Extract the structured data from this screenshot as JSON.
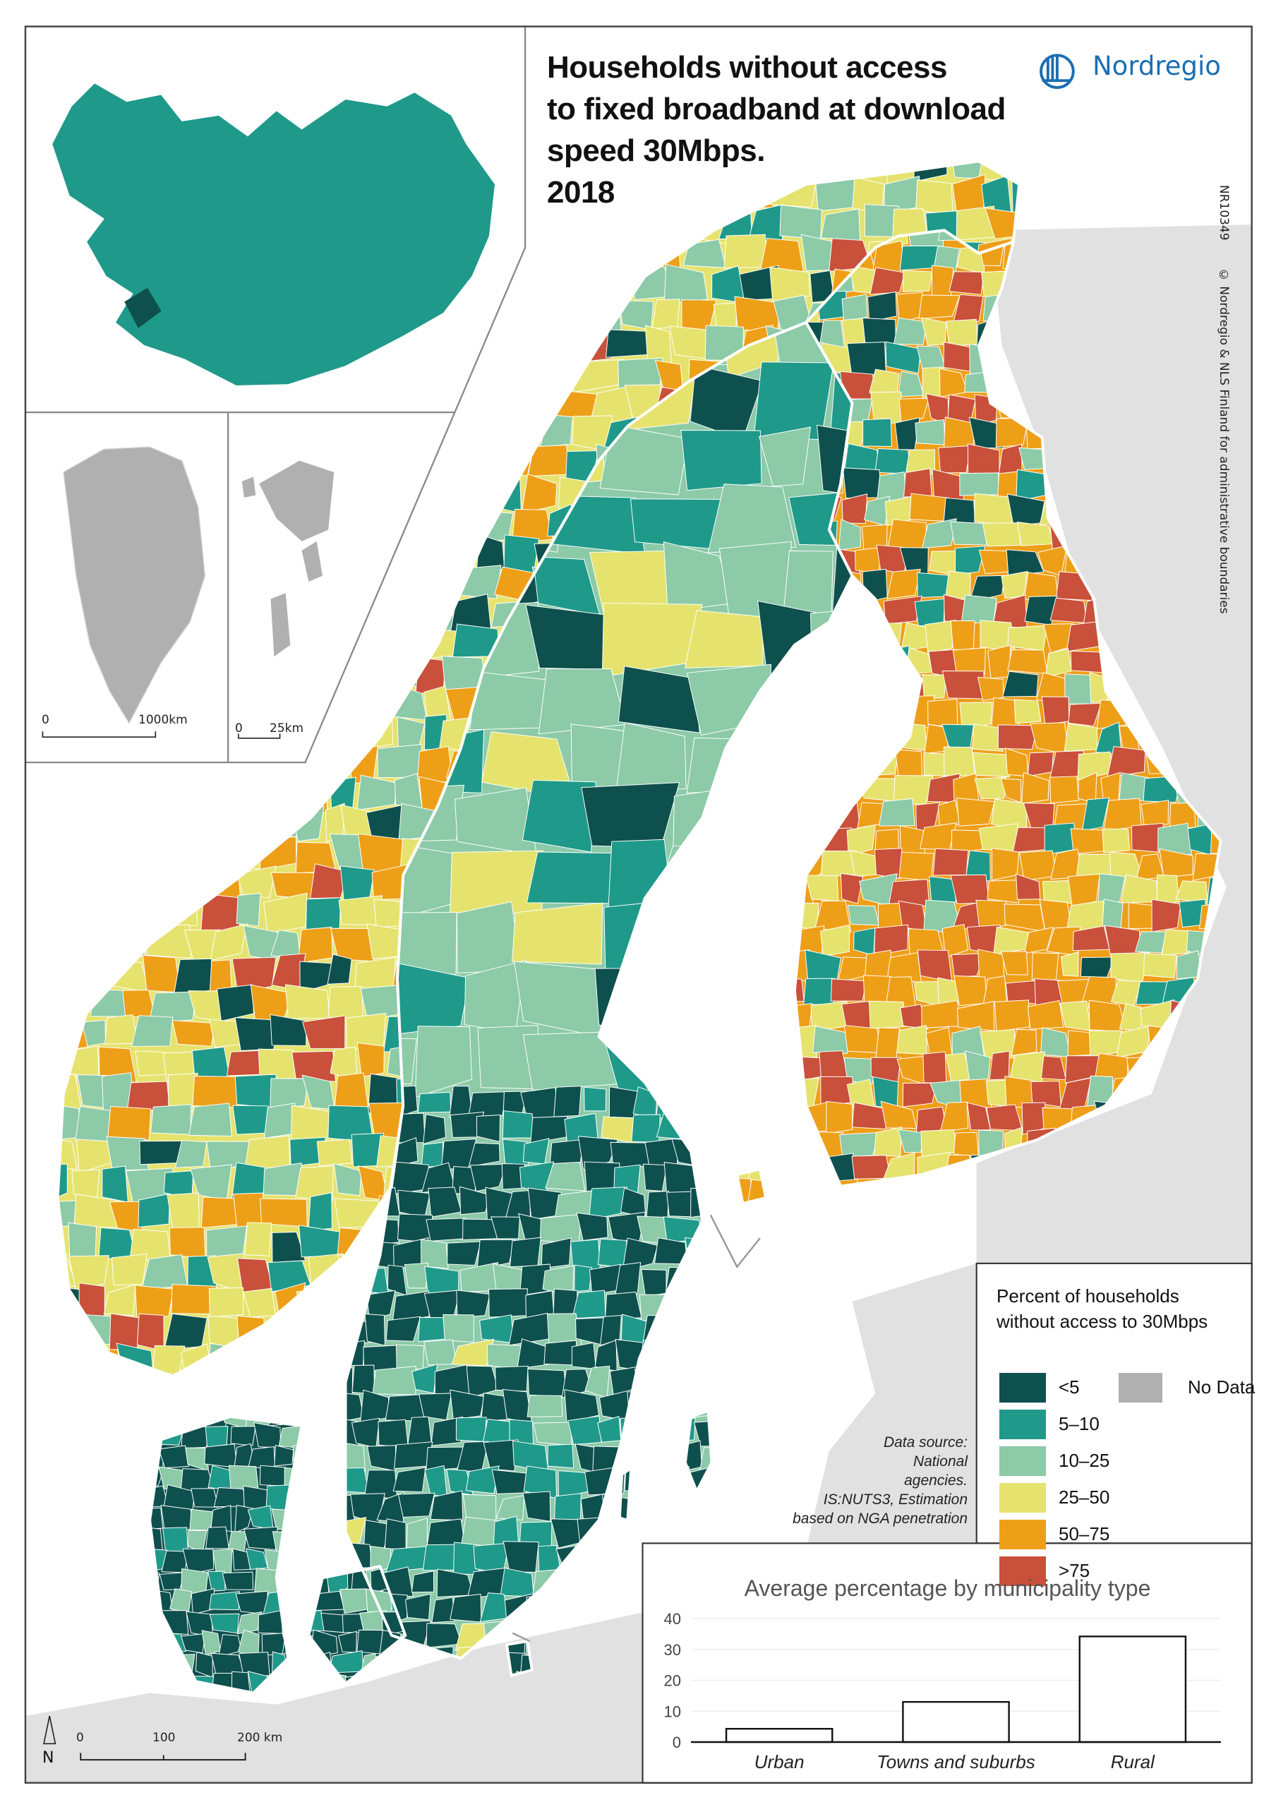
{
  "title": {
    "lines": [
      "Households without access",
      "to fixed broadband at download",
      "speed 30Mbps.",
      "2018"
    ]
  },
  "brand": {
    "name": "Nordregio",
    "color": "#1b6eb4"
  },
  "credits": {
    "map_id": "NR10349",
    "copyright": "© Nordregio & NLS Finland for administrative boundaries"
  },
  "legend": {
    "title_lines": [
      "Percent of households",
      "without access to 30Mbps"
    ],
    "classes": [
      {
        "label": "<5",
        "color": "#0e504d"
      },
      {
        "label": "5–10",
        "color": "#1f998a"
      },
      {
        "label": "10–25",
        "color": "#8ccaa8"
      },
      {
        "label": "25–50",
        "color": "#e5e36e"
      },
      {
        "label": "50–75",
        "color": "#ee9f18"
      },
      {
        "label": ">75",
        "color": "#c9503a"
      }
    ],
    "no_data": {
      "label": "No Data",
      "color": "#b0b0b0"
    }
  },
  "data_source": {
    "lines": [
      "Data source:",
      "National",
      "agencies.",
      "IS:NUTS3, Estimation",
      "based on NGA penetration"
    ]
  },
  "scale_bars": {
    "main": {
      "ticks": [
        "0",
        "100",
        "200 km"
      ],
      "north_label": "N"
    },
    "greenland": {
      "ticks": [
        "0",
        "1000km"
      ]
    },
    "svalbard": {
      "ticks": [
        "0",
        "25km"
      ]
    }
  },
  "chart_data": {
    "type": "bar",
    "title": "Average percentage by municipality type",
    "categories": [
      "Urban",
      "Towns and suburbs",
      "Rural"
    ],
    "values": [
      4.3,
      13,
      34.2
    ],
    "yticks": [
      "0",
      "10",
      "20",
      "30",
      "40"
    ],
    "ylim": [
      0,
      40
    ],
    "xlabel": "",
    "ylabel": "",
    "grid": true,
    "bar_fill": "#ffffff"
  }
}
